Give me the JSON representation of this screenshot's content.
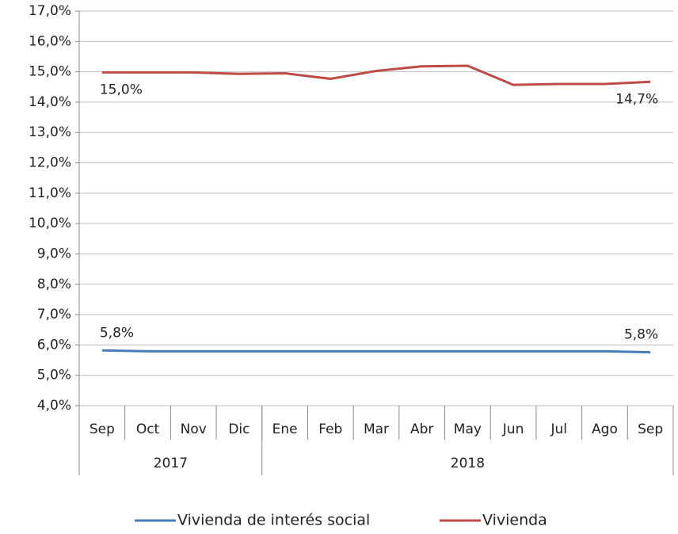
{
  "chart_data": {
    "type": "line",
    "categories": [
      "Sep",
      "Oct",
      "Nov",
      "Dic",
      "Ene",
      "Feb",
      "Mar",
      "Abr",
      "May",
      "Jun",
      "Jul",
      "Ago",
      "Sep"
    ],
    "x_groups": [
      {
        "label": "2017",
        "count": 4
      },
      {
        "label": "2018",
        "count": 9
      }
    ],
    "series": [
      {
        "name": "Vivienda de interés social",
        "color": "#4a7ebb",
        "values": [
          5.82,
          5.79,
          5.79,
          5.79,
          5.79,
          5.79,
          5.79,
          5.79,
          5.79,
          5.79,
          5.79,
          5.79,
          5.76
        ],
        "value_labels": [
          "5,8%",
          null,
          null,
          null,
          null,
          null,
          null,
          null,
          null,
          null,
          null,
          null,
          "5,8%"
        ]
      },
      {
        "name": "Vivienda",
        "color": "#be4b48",
        "values": [
          14.98,
          14.98,
          14.98,
          14.93,
          14.95,
          14.77,
          15.03,
          15.18,
          15.2,
          14.57,
          14.6,
          14.6,
          14.67
        ],
        "value_labels": [
          "15,0%",
          null,
          null,
          null,
          null,
          null,
          null,
          null,
          null,
          null,
          null,
          null,
          "14,7%"
        ]
      }
    ],
    "ylim": [
      4,
      17
    ],
    "yticks": [
      {
        "value": 4,
        "label": "4,0%"
      },
      {
        "value": 5,
        "label": "5,0%"
      },
      {
        "value": 6,
        "label": "6,0%"
      },
      {
        "value": 7,
        "label": "7,0%"
      },
      {
        "value": 8,
        "label": "8,0%"
      },
      {
        "value": 9,
        "label": "9,0%"
      },
      {
        "value": 10,
        "label": "10,0%"
      },
      {
        "value": 11,
        "label": "11,0%"
      },
      {
        "value": 12,
        "label": "12,0%"
      },
      {
        "value": 13,
        "label": "13,0%"
      },
      {
        "value": 14,
        "label": "14,0%"
      },
      {
        "value": 15,
        "label": "15,0%"
      },
      {
        "value": 16,
        "label": "16,0%"
      },
      {
        "value": 17,
        "label": "17,0%"
      }
    ],
    "grid": true,
    "legend": "bottom"
  }
}
